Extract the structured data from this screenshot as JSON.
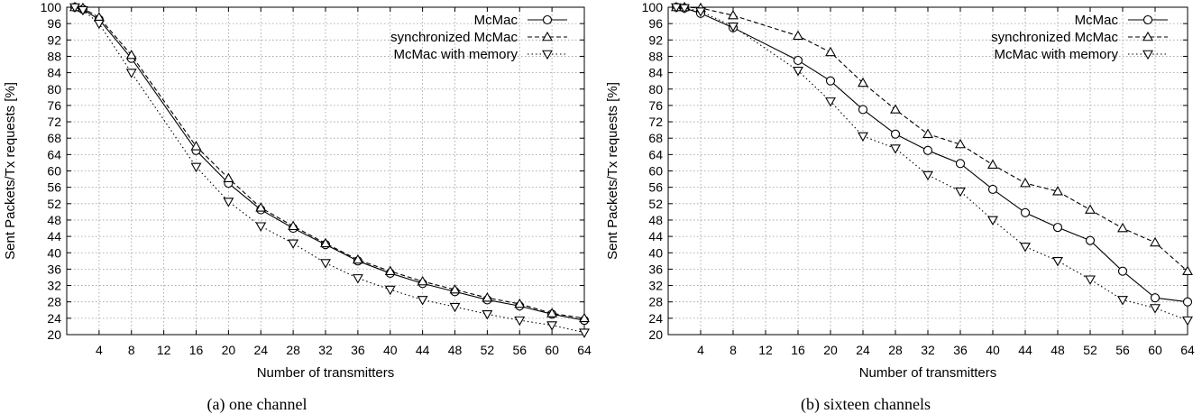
{
  "chart_data": [
    {
      "type": "line",
      "caption": "(a) one channel",
      "xlabel": "Number of transmitters",
      "ylabel": "Sent Packets/Tx requests [%]",
      "xlim": [
        0,
        64
      ],
      "ylim": [
        20,
        100
      ],
      "xticks": [
        4,
        8,
        12,
        16,
        20,
        24,
        28,
        32,
        36,
        40,
        44,
        48,
        52,
        56,
        60,
        64
      ],
      "yticks": [
        20,
        24,
        28,
        32,
        36,
        40,
        44,
        48,
        52,
        56,
        60,
        64,
        68,
        72,
        76,
        80,
        84,
        88,
        92,
        96,
        100
      ],
      "grid": true,
      "legend_position": "top-right",
      "series": [
        {
          "name": "McMac",
          "marker": "circle",
          "dash": "solid",
          "x": [
            1,
            2,
            4,
            8,
            16,
            20,
            24,
            28,
            32,
            36,
            40,
            44,
            48,
            52,
            56,
            60,
            64
          ],
          "y": [
            100,
            99.5,
            97,
            87.5,
            65,
            57,
            50.5,
            46,
            42,
            38,
            35,
            32.5,
            30.5,
            28.5,
            27,
            25,
            23.5
          ]
        },
        {
          "name": "synchronized McMac",
          "marker": "triangle-up",
          "dash": "dashed",
          "x": [
            1,
            2,
            4,
            8,
            16,
            20,
            24,
            28,
            32,
            36,
            40,
            44,
            48,
            52,
            56,
            60,
            64
          ],
          "y": [
            100,
            99.8,
            97.5,
            88.3,
            66,
            58.2,
            51,
            46.5,
            42.3,
            38.3,
            35.5,
            33,
            31,
            29,
            27.5,
            25.2,
            24
          ]
        },
        {
          "name": "McMac with memory",
          "marker": "triangle-down",
          "dash": "dotted",
          "x": [
            1,
            2,
            4,
            8,
            16,
            20,
            24,
            28,
            32,
            36,
            40,
            44,
            48,
            52,
            56,
            60,
            64
          ],
          "y": [
            100,
            99.3,
            96,
            84,
            61,
            52.5,
            46.5,
            42.3,
            37.5,
            33.8,
            31,
            28.5,
            26.8,
            25,
            23.5,
            22.3,
            20.5
          ]
        }
      ]
    },
    {
      "type": "line",
      "caption": "(b) sixteen channels",
      "xlabel": "Number of transmitters",
      "ylabel": "Sent Packets/Tx requests [%]",
      "xlim": [
        0,
        64
      ],
      "ylim": [
        20,
        100
      ],
      "xticks": [
        4,
        8,
        12,
        16,
        20,
        24,
        28,
        32,
        36,
        40,
        44,
        48,
        52,
        56,
        60,
        64
      ],
      "yticks": [
        20,
        24,
        28,
        32,
        36,
        40,
        44,
        48,
        52,
        56,
        60,
        64,
        68,
        72,
        76,
        80,
        84,
        88,
        92,
        96,
        100
      ],
      "grid": true,
      "legend_position": "top-right",
      "series": [
        {
          "name": "McMac",
          "marker": "circle",
          "dash": "solid",
          "x": [
            1,
            2,
            4,
            8,
            16,
            20,
            24,
            28,
            32,
            36,
            40,
            44,
            48,
            52,
            56,
            60,
            64
          ],
          "y": [
            100,
            99.8,
            98.5,
            95,
            87,
            82,
            75,
            69,
            65,
            61.8,
            55.5,
            49.8,
            46.2,
            43,
            35.5,
            29,
            28
          ]
        },
        {
          "name": "synchronized McMac",
          "marker": "triangle-up",
          "dash": "dashed",
          "x": [
            1,
            2,
            4,
            8,
            16,
            20,
            24,
            28,
            32,
            36,
            40,
            44,
            48,
            52,
            56,
            60,
            64
          ],
          "y": [
            100,
            100,
            99.8,
            98,
            93,
            89,
            81.5,
            75,
            69,
            66.5,
            61.5,
            57,
            55,
            50.5,
            46,
            42.5,
            35.5
          ]
        },
        {
          "name": "McMac with memory",
          "marker": "triangle-down",
          "dash": "dotted",
          "x": [
            1,
            2,
            4,
            8,
            16,
            20,
            24,
            28,
            32,
            36,
            40,
            44,
            48,
            52,
            56,
            60,
            64
          ],
          "y": [
            100,
            99.8,
            99,
            95.3,
            84.5,
            77,
            68.5,
            65.5,
            59,
            55,
            48,
            41.5,
            38,
            33.5,
            28.5,
            26.5,
            23.5
          ]
        }
      ]
    }
  ]
}
